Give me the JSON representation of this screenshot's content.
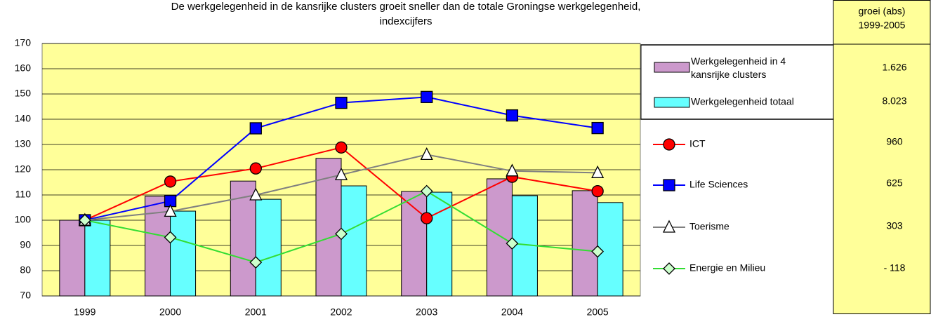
{
  "chart_data": {
    "type": "combo",
    "title": "De werkgelegenheid in de kansrijke clusters groeit sneller dan de totale Groningse werkgelegenheid,",
    "subtitle": "indexcijfers",
    "categories": [
      "1999",
      "2000",
      "2001",
      "2002",
      "2003",
      "2004",
      "2005"
    ],
    "series": [
      {
        "name": "Werkgelegenheid in 4 kansrijke clusters",
        "type": "bar",
        "color": "#cc99cc",
        "values": [
          100,
          109.5,
          115.5,
          124.5,
          111.4,
          116.4,
          111.7
        ]
      },
      {
        "name": "Werkgelegenheid totaal",
        "type": "bar",
        "color": "#66ffff",
        "values": [
          100,
          103.6,
          108.3,
          113.6,
          111.1,
          109.7,
          107
        ]
      },
      {
        "name": "ICT",
        "type": "line",
        "color": "#ff0000",
        "marker": "circle",
        "marker_color": "#ff0000",
        "values": [
          100,
          115.3,
          120.5,
          128.8,
          100.8,
          117.2,
          111.5
        ]
      },
      {
        "name": "Life Sciences",
        "type": "line",
        "color": "#0000ff",
        "marker": "square",
        "marker_color": "#0000ff",
        "values": [
          100,
          107.6,
          136.4,
          146.5,
          148.8,
          141.5,
          136.5
        ]
      },
      {
        "name": "Toerisme",
        "type": "line",
        "color": "#808080",
        "marker": "triangle",
        "marker_color": "#ffffff",
        "values": [
          100,
          103.5,
          110,
          118,
          126,
          119.5,
          118.8
        ]
      },
      {
        "name": "Energie en Milieu",
        "type": "line",
        "color": "#33dd33",
        "marker": "diamond",
        "marker_color": "#ccffcc",
        "values": [
          100,
          93.2,
          83.3,
          94.6,
          111.5,
          90.8,
          87.6
        ]
      }
    ],
    "ylim": [
      70,
      170
    ],
    "yticks": [
      70,
      80,
      90,
      100,
      110,
      120,
      130,
      140,
      150,
      160,
      170
    ],
    "grid": true,
    "plot_color": "#ffff99"
  },
  "table": {
    "header": [
      "groei (abs)",
      "1999-2005"
    ],
    "rows": [
      "1.626",
      "8.023",
      "960",
      "625",
      "303",
      "- 118"
    ]
  }
}
